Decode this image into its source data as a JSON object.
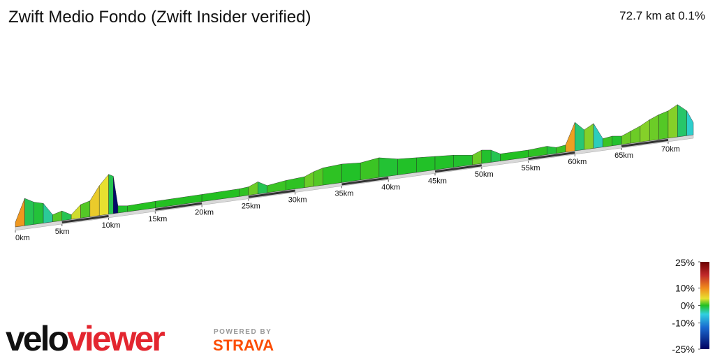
{
  "chart_data": {
    "type": "profile3d",
    "title": "Zwift Medio Fondo (Zwift Insider verified)",
    "summary": "72.7 km at 0.1%",
    "xlim": [
      0,
      72.7
    ],
    "xticks": [
      {
        "value": 0,
        "label": "0km"
      },
      {
        "value": 5,
        "label": "5km"
      },
      {
        "value": 10,
        "label": "10km"
      },
      {
        "value": 15,
        "label": "15km"
      },
      {
        "value": 20,
        "label": "20km"
      },
      {
        "value": 25,
        "label": "25km"
      },
      {
        "value": 30,
        "label": "30km"
      },
      {
        "value": 35,
        "label": "35km"
      },
      {
        "value": 40,
        "label": "40km"
      },
      {
        "value": 45,
        "label": "45km"
      },
      {
        "value": 50,
        "label": "50km"
      },
      {
        "value": 55,
        "label": "55km"
      },
      {
        "value": 60,
        "label": "60km"
      },
      {
        "value": 65,
        "label": "65km"
      },
      {
        "value": 70,
        "label": "70km"
      }
    ],
    "ylim": [
      0,
      180
    ],
    "x": [
      0,
      1,
      2,
      3,
      4,
      5,
      6,
      7,
      8,
      9,
      10,
      10.5,
      11,
      12,
      15,
      20,
      24,
      25,
      26,
      27,
      29,
      31,
      32,
      33,
      35,
      37,
      39,
      41,
      43,
      45,
      47,
      49,
      50,
      51,
      52,
      55,
      57,
      58,
      59,
      60,
      61,
      62,
      63,
      64,
      65,
      66,
      67,
      68,
      69,
      70,
      71,
      72,
      72.7
    ],
    "values": [
      10,
      100,
      80,
      70,
      20,
      30,
      10,
      45,
      55,
      110,
      150,
      140,
      20,
      15,
      18,
      20,
      22,
      25,
      40,
      20,
      30,
      35,
      50,
      60,
      65,
      60,
      70,
      55,
      50,
      45,
      40,
      30,
      45,
      40,
      20,
      20,
      25,
      15,
      20,
      105,
      70,
      90,
      25,
      30,
      25,
      40,
      55,
      75,
      90,
      100,
      120,
      90,
      40
    ],
    "color_scale": {
      "lim": [
        -25,
        25
      ],
      "ticks": [
        {
          "value": 25,
          "label": "25%"
        },
        {
          "value": 10,
          "label": "10%"
        },
        {
          "value": 0,
          "label": "0%"
        },
        {
          "value": -10,
          "label": "-10%"
        },
        {
          "value": -25,
          "label": "-25%"
        }
      ]
    }
  },
  "branding": {
    "logo": [
      "velo",
      "viewer"
    ],
    "powered": "POWERED BY",
    "strava": "STRAVA"
  }
}
